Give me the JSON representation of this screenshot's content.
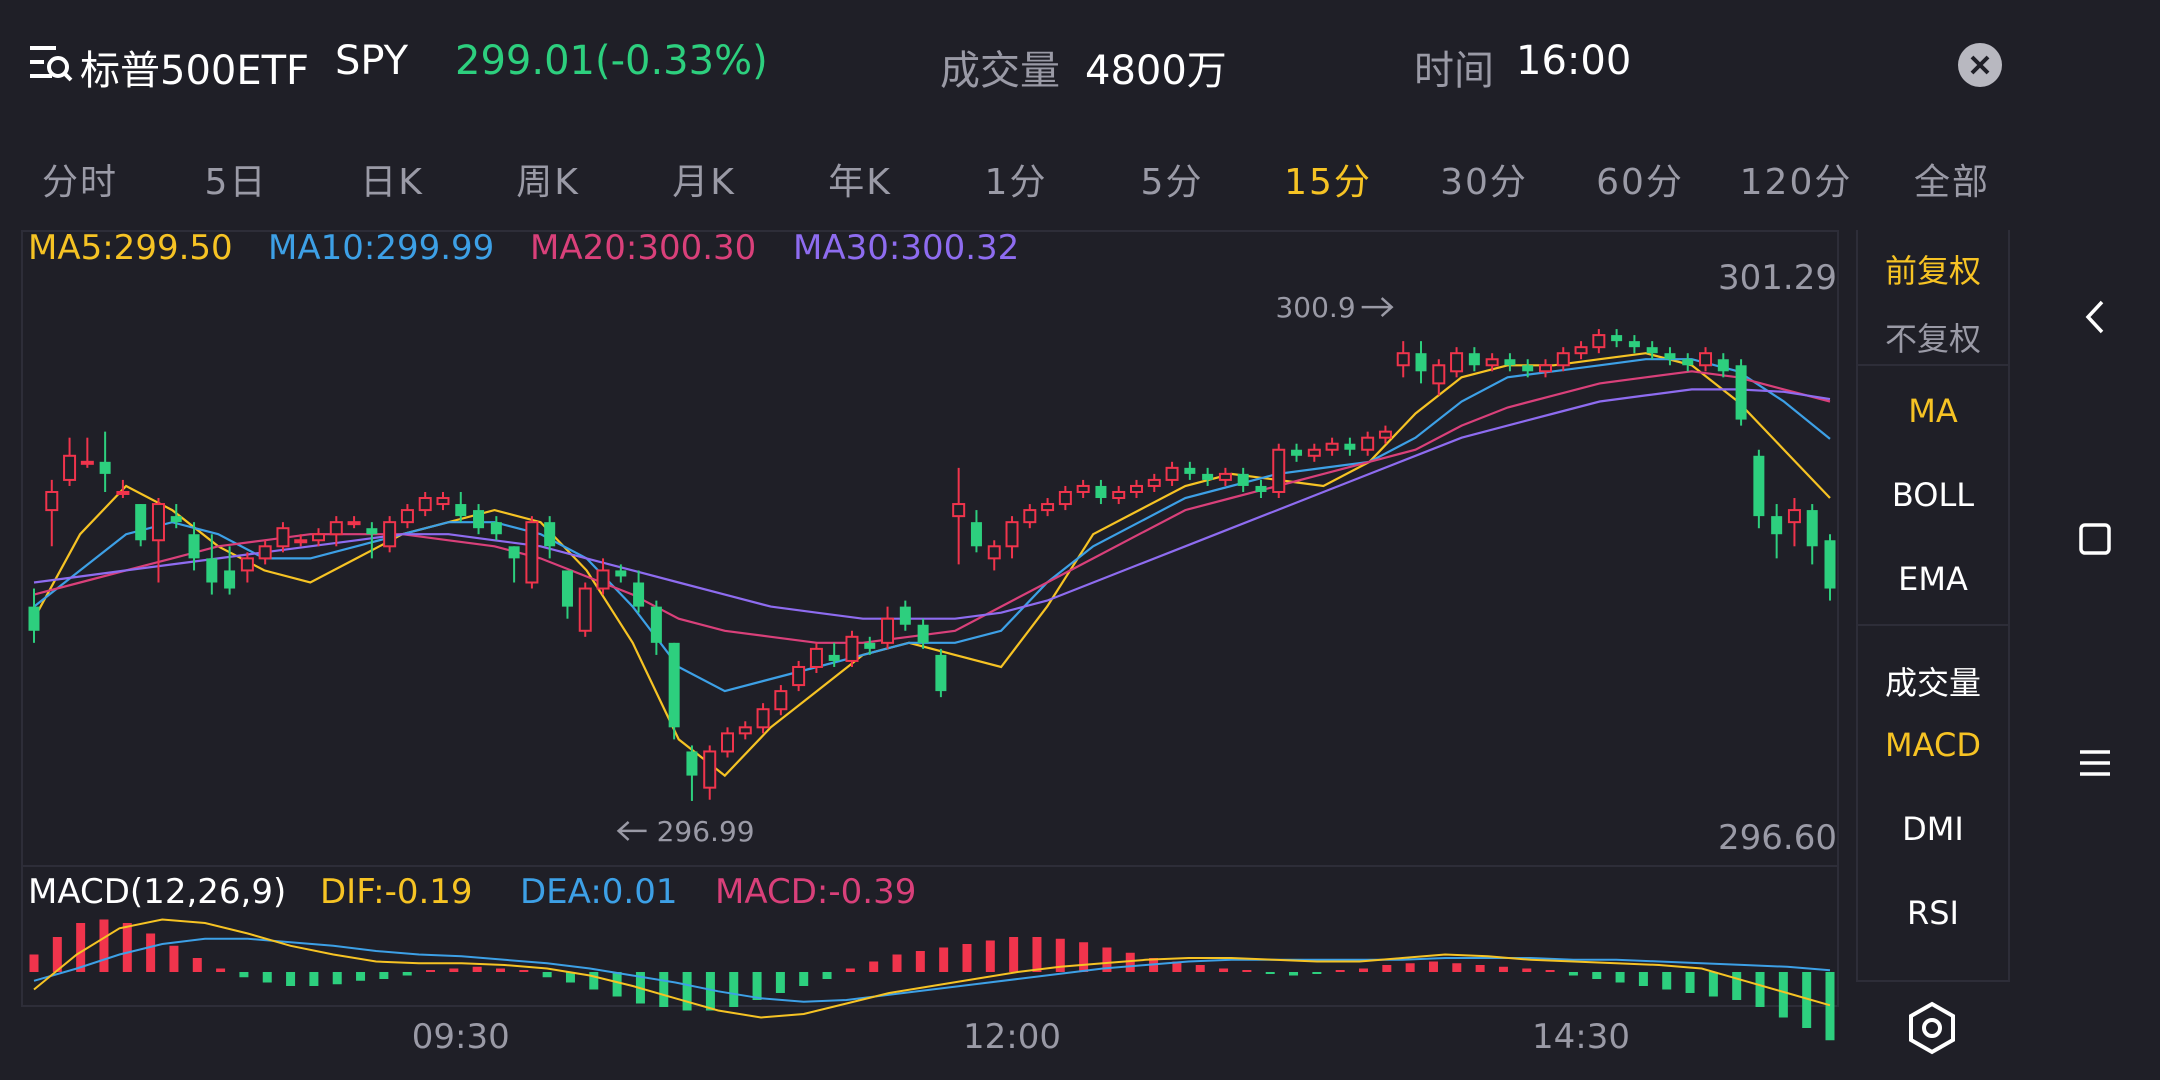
{
  "header": {
    "title": "标普500ETF",
    "ticker": "SPY",
    "price_change": "299.01(-0.33%)",
    "volume_label": "成交量",
    "volume_value": "4800万",
    "time_label": "时间",
    "time_value": "16:00"
  },
  "tabs": [
    {
      "label": "分时"
    },
    {
      "label": "5日"
    },
    {
      "label": "日K"
    },
    {
      "label": "周K"
    },
    {
      "label": "月K"
    },
    {
      "label": "年K"
    },
    {
      "label": "1分"
    },
    {
      "label": "5分"
    },
    {
      "label": "15分",
      "active": true
    },
    {
      "label": "30分"
    },
    {
      "label": "60分"
    },
    {
      "label": "120分"
    },
    {
      "label": "全部"
    }
  ],
  "side_panel": {
    "adjust": [
      "前复权",
      "不复权"
    ],
    "main_indicators": [
      "MA",
      "BOLL",
      "EMA"
    ],
    "sub_indicators": [
      "成交量",
      "MACD",
      "DMI",
      "RSI"
    ]
  },
  "colors": {
    "up": "#f0344c",
    "down": "#2dcf7e",
    "ma5": "#f6c324",
    "ma10": "#3da0e6",
    "ma20": "#d9407a",
    "ma30": "#8e6cf0",
    "accent": "#f6c324",
    "background": "#1f1f27"
  },
  "chart_data": {
    "type": "candlestick",
    "ma_legend": {
      "ma5": "MA5:299.50",
      "ma10": "MA10:299.99",
      "ma20": "MA20:300.30",
      "ma30": "MA30:300.32"
    },
    "y_high_label": "301.29",
    "y_low_label": "296.60",
    "ylim": [
      296.6,
      301.29
    ],
    "max_annotation": {
      "text": "300.9",
      "price": 300.9,
      "index": 75
    },
    "min_annotation": {
      "text": "296.99",
      "price": 296.99,
      "index": 34
    },
    "x_ticks": [
      {
        "label": "09:30",
        "index": 24
      },
      {
        "label": "12:00",
        "index": 55
      },
      {
        "label": "14:30",
        "index": 87
      }
    ],
    "candles": [
      [
        298.6,
        298.4,
        298.75,
        298.3
      ],
      [
        299.4,
        299.55,
        299.65,
        299.1
      ],
      [
        299.65,
        299.85,
        300.0,
        299.6
      ],
      [
        299.8,
        299.8,
        300.0,
        299.75
      ],
      [
        299.8,
        299.7,
        300.05,
        299.55
      ],
      [
        299.55,
        299.55,
        299.65,
        299.5
      ],
      [
        299.45,
        299.15,
        299.45,
        299.1
      ],
      [
        299.15,
        299.45,
        299.5,
        298.8
      ],
      [
        299.35,
        299.3,
        299.45,
        299.25
      ],
      [
        299.2,
        299.0,
        299.3,
        298.9
      ],
      [
        299.0,
        298.8,
        299.2,
        298.7
      ],
      [
        298.9,
        298.75,
        299.1,
        298.7
      ],
      [
        298.9,
        299.0,
        299.05,
        298.8
      ],
      [
        299.0,
        299.1,
        299.15,
        298.95
      ],
      [
        299.1,
        299.25,
        299.3,
        299.05
      ],
      [
        299.15,
        299.15,
        299.2,
        299.1
      ],
      [
        299.15,
        299.2,
        299.25,
        299.1
      ],
      [
        299.2,
        299.3,
        299.35,
        299.1
      ],
      [
        299.3,
        299.3,
        299.35,
        299.25
      ],
      [
        299.25,
        299.2,
        299.3,
        299.0
      ],
      [
        299.1,
        299.3,
        299.35,
        299.05
      ],
      [
        299.3,
        299.4,
        299.45,
        299.25
      ],
      [
        299.4,
        299.5,
        299.55,
        299.35
      ],
      [
        299.45,
        299.5,
        299.55,
        299.4
      ],
      [
        299.45,
        299.35,
        299.55,
        299.3
      ],
      [
        299.4,
        299.25,
        299.45,
        299.2
      ],
      [
        299.3,
        299.2,
        299.35,
        299.15
      ],
      [
        299.1,
        299.0,
        299.1,
        298.8
      ],
      [
        298.8,
        299.3,
        299.35,
        298.75
      ],
      [
        299.3,
        299.1,
        299.35,
        299.0
      ],
      [
        298.9,
        298.6,
        298.9,
        298.5
      ],
      [
        298.4,
        298.75,
        298.8,
        298.35
      ],
      [
        298.75,
        298.9,
        299.0,
        298.7
      ],
      [
        298.9,
        298.85,
        298.95,
        298.8
      ],
      [
        298.8,
        298.6,
        298.9,
        298.55
      ],
      [
        298.6,
        298.3,
        298.65,
        298.2
      ],
      [
        298.3,
        297.6,
        298.3,
        297.5
      ],
      [
        297.4,
        297.2,
        297.45,
        296.99
      ],
      [
        297.1,
        297.4,
        297.45,
        297.0
      ],
      [
        297.4,
        297.55,
        297.6,
        297.35
      ],
      [
        297.55,
        297.6,
        297.65,
        297.5
      ],
      [
        297.6,
        297.75,
        297.8,
        297.55
      ],
      [
        297.75,
        297.9,
        297.95,
        297.7
      ],
      [
        297.95,
        298.1,
        298.15,
        297.9
      ],
      [
        298.1,
        298.25,
        298.3,
        298.05
      ],
      [
        298.2,
        298.15,
        298.3,
        298.1
      ],
      [
        298.15,
        298.35,
        298.4,
        298.1
      ],
      [
        298.3,
        298.25,
        298.35,
        298.2
      ],
      [
        298.3,
        298.5,
        298.6,
        298.25
      ],
      [
        298.6,
        298.45,
        298.65,
        298.4
      ],
      [
        298.45,
        298.3,
        298.5,
        298.25
      ],
      [
        298.2,
        297.9,
        298.25,
        297.85
      ],
      [
        299.35,
        299.45,
        299.75,
        298.95
      ],
      [
        299.3,
        299.1,
        299.4,
        299.05
      ],
      [
        299.0,
        299.1,
        299.15,
        298.9
      ],
      [
        299.1,
        299.3,
        299.35,
        299.0
      ],
      [
        299.3,
        299.4,
        299.45,
        299.25
      ],
      [
        299.4,
        299.45,
        299.5,
        299.35
      ],
      [
        299.45,
        299.55,
        299.6,
        299.4
      ],
      [
        299.55,
        299.6,
        299.65,
        299.5
      ],
      [
        299.6,
        299.5,
        299.65,
        299.45
      ],
      [
        299.5,
        299.55,
        299.6,
        299.45
      ],
      [
        299.55,
        299.6,
        299.65,
        299.5
      ],
      [
        299.6,
        299.65,
        299.7,
        299.55
      ],
      [
        299.65,
        299.75,
        299.8,
        299.6
      ],
      [
        299.75,
        299.7,
        299.8,
        299.65
      ],
      [
        299.7,
        299.65,
        299.75,
        299.6
      ],
      [
        299.65,
        299.7,
        299.75,
        299.6
      ],
      [
        299.7,
        299.6,
        299.75,
        299.55
      ],
      [
        299.6,
        299.55,
        299.65,
        299.5
      ],
      [
        299.55,
        299.9,
        299.95,
        299.5
      ],
      [
        299.9,
        299.85,
        299.95,
        299.8
      ],
      [
        299.85,
        299.9,
        299.95,
        299.8
      ],
      [
        299.9,
        299.95,
        300.0,
        299.85
      ],
      [
        299.95,
        299.9,
        300.0,
        299.85
      ],
      [
        299.9,
        300.0,
        300.05,
        299.85
      ],
      [
        300.0,
        300.05,
        300.1,
        299.95
      ],
      [
        300.6,
        300.7,
        300.8,
        300.5
      ],
      [
        300.7,
        300.55,
        300.8,
        300.45
      ],
      [
        300.45,
        300.6,
        300.65,
        300.35
      ],
      [
        300.55,
        300.7,
        300.75,
        300.5
      ],
      [
        300.7,
        300.6,
        300.75,
        300.55
      ],
      [
        300.6,
        300.65,
        300.7,
        300.55
      ],
      [
        300.65,
        300.6,
        300.7,
        300.55
      ],
      [
        300.6,
        300.55,
        300.65,
        300.5
      ],
      [
        300.55,
        300.6,
        300.65,
        300.5
      ],
      [
        300.6,
        300.7,
        300.75,
        300.55
      ],
      [
        300.7,
        300.75,
        300.8,
        300.65
      ],
      [
        300.75,
        300.85,
        300.9,
        300.7
      ],
      [
        300.85,
        300.8,
        300.9,
        300.75
      ],
      [
        300.8,
        300.75,
        300.85,
        300.7
      ],
      [
        300.75,
        300.7,
        300.8,
        300.65
      ],
      [
        300.7,
        300.65,
        300.75,
        300.6
      ],
      [
        300.65,
        300.6,
        300.7,
        300.55
      ],
      [
        300.6,
        300.7,
        300.75,
        300.55
      ],
      [
        300.65,
        300.55,
        300.7,
        300.5
      ],
      [
        300.6,
        300.15,
        300.65,
        300.1
      ],
      [
        299.85,
        299.35,
        299.9,
        299.25
      ],
      [
        299.35,
        299.2,
        299.45,
        299.0
      ],
      [
        299.3,
        299.4,
        299.5,
        299.1
      ],
      [
        299.4,
        299.1,
        299.45,
        298.95
      ],
      [
        299.15,
        298.75,
        299.2,
        298.65
      ]
    ],
    "ma_lines": {
      "ma5": [
        298.5,
        299.2,
        299.6,
        299.4,
        299.1,
        298.9,
        298.8,
        299.0,
        299.2,
        299.3,
        299.4,
        299.3,
        298.9,
        298.3,
        297.5,
        297.2,
        297.6,
        297.9,
        298.2,
        298.3,
        298.2,
        298.1,
        298.6,
        299.2,
        299.4,
        299.6,
        299.7,
        299.65,
        299.6,
        299.8,
        300.2,
        300.5,
        300.6,
        300.6,
        300.65,
        300.7,
        300.6,
        300.3,
        299.9,
        299.5
      ],
      "ma10": [
        298.6,
        298.9,
        299.2,
        299.3,
        299.2,
        299.0,
        299.0,
        299.1,
        299.2,
        299.3,
        299.3,
        299.2,
        299.0,
        298.6,
        298.1,
        297.9,
        298.0,
        298.1,
        298.2,
        298.3,
        298.3,
        298.4,
        298.8,
        299.1,
        299.3,
        299.5,
        299.6,
        299.7,
        299.75,
        299.8,
        300.0,
        300.3,
        300.5,
        300.55,
        300.6,
        300.65,
        300.65,
        300.55,
        300.3,
        299.99
      ],
      "ma20": [
        298.7,
        298.8,
        298.9,
        299.0,
        299.1,
        299.15,
        299.2,
        299.2,
        299.2,
        299.15,
        299.1,
        299.0,
        298.85,
        298.7,
        298.5,
        298.4,
        298.35,
        298.3,
        298.3,
        298.35,
        298.4,
        298.6,
        298.8,
        299.0,
        299.2,
        299.4,
        299.5,
        299.6,
        299.7,
        299.8,
        299.9,
        300.1,
        300.25,
        300.35,
        300.45,
        300.5,
        300.55,
        300.5,
        300.4,
        300.3
      ],
      "ma30": [
        298.8,
        298.85,
        298.9,
        298.95,
        299.0,
        299.05,
        299.1,
        299.15,
        299.2,
        299.2,
        299.15,
        299.1,
        299.0,
        298.9,
        298.8,
        298.7,
        298.6,
        298.55,
        298.5,
        298.5,
        298.5,
        298.55,
        298.65,
        298.8,
        298.95,
        299.1,
        299.25,
        299.4,
        299.55,
        299.7,
        299.85,
        300.0,
        300.1,
        300.2,
        300.3,
        300.35,
        300.4,
        300.4,
        300.38,
        300.32
      ]
    },
    "macd_legend": {
      "title": "MACD(12,26,9)",
      "dif": "DIF:-0.19",
      "dea": "DEA:0.01",
      "macd": "MACD:-0.39"
    },
    "macd_hist": [
      0.1,
      0.2,
      0.28,
      0.3,
      0.28,
      0.22,
      0.15,
      0.08,
      0.02,
      -0.03,
      -0.06,
      -0.08,
      -0.08,
      -0.07,
      -0.05,
      -0.04,
      -0.02,
      0.0,
      0.02,
      0.03,
      0.02,
      0.0,
      -0.03,
      -0.06,
      -0.1,
      -0.14,
      -0.18,
      -0.2,
      -0.22,
      -0.22,
      -0.2,
      -0.16,
      -0.12,
      -0.08,
      -0.04,
      0.02,
      0.06,
      0.1,
      0.12,
      0.14,
      0.16,
      0.18,
      0.2,
      0.2,
      0.19,
      0.17,
      0.14,
      0.11,
      0.08,
      0.06,
      0.04,
      0.02,
      0.0,
      -0.01,
      -0.02,
      -0.01,
      0.0,
      0.02,
      0.04,
      0.05,
      0.06,
      0.05,
      0.04,
      0.03,
      0.02,
      0.0,
      -0.02,
      -0.04,
      -0.06,
      -0.08,
      -0.1,
      -0.12,
      -0.14,
      -0.16,
      -0.2,
      -0.26,
      -0.32,
      -0.39
    ],
    "macd_dif": [
      -0.1,
      0.1,
      0.25,
      0.3,
      0.28,
      0.22,
      0.15,
      0.1,
      0.06,
      0.05,
      0.05,
      0.04,
      0.02,
      -0.02,
      -0.08,
      -0.15,
      -0.22,
      -0.26,
      -0.24,
      -0.18,
      -0.12,
      -0.08,
      -0.04,
      0.0,
      0.03,
      0.05,
      0.07,
      0.08,
      0.08,
      0.07,
      0.06,
      0.06,
      0.08,
      0.1,
      0.09,
      0.07,
      0.06,
      0.05,
      0.04,
      0.02,
      -0.05,
      -0.12,
      -0.19
    ],
    "macd_dea": [
      -0.05,
      0.02,
      0.1,
      0.16,
      0.19,
      0.19,
      0.17,
      0.15,
      0.12,
      0.1,
      0.09,
      0.07,
      0.05,
      0.02,
      -0.02,
      -0.06,
      -0.11,
      -0.15,
      -0.17,
      -0.16,
      -0.13,
      -0.1,
      -0.07,
      -0.04,
      -0.01,
      0.02,
      0.04,
      0.06,
      0.07,
      0.07,
      0.07,
      0.07,
      0.07,
      0.08,
      0.08,
      0.08,
      0.07,
      0.07,
      0.06,
      0.05,
      0.04,
      0.03,
      0.01
    ]
  }
}
